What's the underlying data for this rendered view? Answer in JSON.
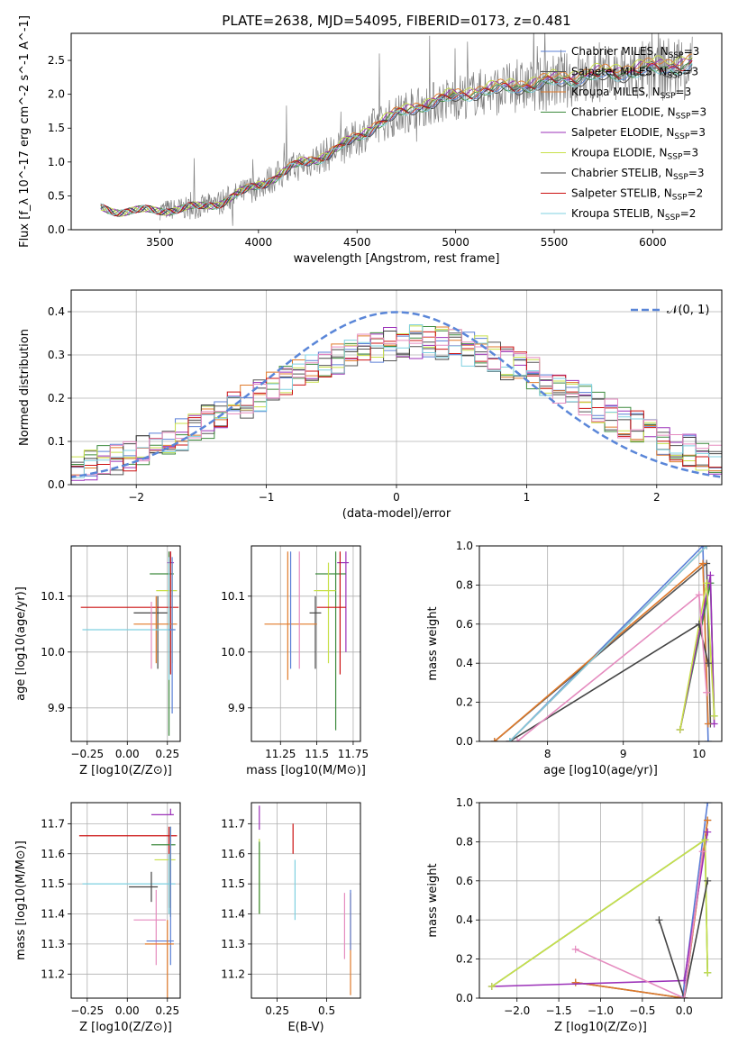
{
  "page_title": "PLATE=2638, MJD=54095, FIBERID=0173, z=0.481",
  "series_styles": [
    {
      "name": "Chabrier MILES, N$_{SSP}$=3",
      "label_main": "Chabrier MILES, N",
      "label_sub": "SSP",
      "label_tail": "=3",
      "color": "#5a7fd6"
    },
    {
      "name": "Salpeter MILES, N$_{SSP}$=3",
      "label_main": "Salpeter MILES, N",
      "label_sub": "SSP",
      "label_tail": "=3",
      "color": "#555555"
    },
    {
      "name": "Kroupa MILES, N$_{SSP}$=3",
      "label_main": "Kroupa MILES, N",
      "label_sub": "SSP",
      "label_tail": "=3",
      "color": "#e07a2a"
    },
    {
      "name": "Chabrier ELODIE, N$_{SSP}$=3",
      "label_main": "Chabrier ELODIE, N",
      "label_sub": "SSP",
      "label_tail": "=3",
      "color": "#3d8a3d"
    },
    {
      "name": "Salpeter ELODIE, N$_{SSP}$=3",
      "label_main": "Salpeter ELODIE, N",
      "label_sub": "SSP",
      "label_tail": "=3",
      "color": "#9b30b8"
    },
    {
      "name": "Kroupa ELODIE, N$_{SSP}$=3",
      "label_main": "Kroupa ELODIE, N",
      "label_sub": "SSP",
      "label_tail": "=3",
      "color": "#c8e04a"
    },
    {
      "name": "Chabrier STELIB, N$_{SSP}$=3",
      "label_main": "Chabrier STELIB, N",
      "label_sub": "SSP",
      "label_tail": "=3",
      "color": "#444444"
    },
    {
      "name": "Salpeter STELIB, N$_{SSP}$=2",
      "label_main": "Salpeter STELIB, N",
      "label_sub": "SSP",
      "label_tail": "=2",
      "color": "#cc1111"
    },
    {
      "name": "Kroupa STELIB, N$_{SSP}$=2",
      "label_main": "Kroupa STELIB, N",
      "label_sub": "SSP",
      "label_tail": "=2",
      "color": "#7fd0e0"
    }
  ],
  "extra_colors": {
    "data": "#7f7f7f",
    "pink": "#e58bbf",
    "normal": "#5a86d8",
    "grid": "#b0b0b0"
  },
  "chart_data": [
    {
      "id": "spectrum",
      "type": "line",
      "title": "PLATE=2638, MJD=54095, FIBERID=0173, z=0.481",
      "xlabel": "wavelength [Angstrom, rest frame]",
      "ylabel": "Flux [f_λ 10^-17 erg cm^-2 s^-1 A^-1]",
      "xlim": [
        3050,
        6350
      ],
      "ylim": [
        0,
        2.9
      ],
      "xticks": [
        3500,
        4000,
        4500,
        5000,
        5500,
        6000
      ],
      "yticks": [
        0.0,
        0.5,
        1.0,
        1.5,
        2.0,
        2.5
      ],
      "grid": false,
      "legend": "top-right",
      "model_x": [
        3200,
        3300,
        3400,
        3500,
        3600,
        3700,
        3800,
        3900,
        4000,
        4100,
        4200,
        4300,
        4400,
        4500,
        4600,
        4700,
        4800,
        4900,
        5000,
        5100,
        5200,
        5300,
        5400,
        5500,
        5600,
        5700,
        5800,
        5900,
        6000,
        6100,
        6200
      ],
      "model_y": [
        0.32,
        0.28,
        0.27,
        0.29,
        0.31,
        0.33,
        0.4,
        0.52,
        0.65,
        0.8,
        0.95,
        1.05,
        1.18,
        1.35,
        1.55,
        1.68,
        1.8,
        1.88,
        1.95,
        2.02,
        2.05,
        2.1,
        2.12,
        2.18,
        2.22,
        2.25,
        2.28,
        2.32,
        2.35,
        2.38,
        2.42
      ],
      "series_offsets": [
        0.0,
        0.05,
        0.12,
        0.0,
        0.1,
        0.15,
        -0.05,
        0.02,
        -0.03
      ],
      "data_x_range": [
        3500,
        6200
      ]
    },
    {
      "id": "residual-hist",
      "type": "line",
      "xlabel": "(data-model)/error",
      "ylabel": "Normed distribution",
      "xlim": [
        -2.5,
        2.5
      ],
      "ylim": [
        0,
        0.45
      ],
      "xticks": [
        -2,
        -1,
        0,
        1,
        2
      ],
      "yticks": [
        0.0,
        0.1,
        0.2,
        0.3,
        0.4
      ],
      "grid": true,
      "legend": "top-right",
      "legend_label": "𝒩(0, 1)",
      "bin_edges_start": -2.5,
      "bin_width": 0.1,
      "n_bins": 50
    },
    {
      "id": "age-vs-Z",
      "type": "scatter",
      "xlabel": "Z [log10(Z/Z⊙)]",
      "ylabel": "age [log10(age/yr)]",
      "xlim": [
        -0.35,
        0.33
      ],
      "ylim": [
        9.84,
        10.19
      ],
      "xticks": [
        -0.25,
        0.0,
        0.25
      ],
      "xtick_labels": [
        "−0.25",
        "0.00",
        "0.25"
      ],
      "yticks": [
        9.9,
        10.0,
        10.1
      ],
      "grid": true,
      "points": [
        {
          "x": 0.27,
          "y": 10.16,
          "xerr": [
            0.02,
            0.02
          ],
          "yerr": [
            0.0,
            0.02
          ],
          "s": 4
        },
        {
          "x": 0.26,
          "y": 10.14,
          "xerr": [
            0.12,
            0.03
          ],
          "yerr": [
            0.29,
            0.04
          ],
          "s": 3
        },
        {
          "x": 0.28,
          "y": 10.11,
          "xerr": [
            0.1,
            0.03
          ],
          "yerr": [
            0.13,
            0.05
          ],
          "s": 5
        },
        {
          "x": 0.19,
          "y": 10.07,
          "xerr": [
            0.15,
            0.06
          ],
          "yerr": [
            0.1,
            0.03
          ],
          "s": 6
        },
        {
          "x": 0.27,
          "y": 10.08,
          "xerr": [
            0.56,
            0.05
          ],
          "yerr": [
            0.12,
            0.1
          ],
          "s": 7
        },
        {
          "x": 0.18,
          "y": 10.05,
          "xerr": [
            0.14,
            0.13
          ],
          "yerr": [
            0.07,
            0.05
          ],
          "s": 2
        },
        {
          "x": 0.26,
          "y": 10.04,
          "xerr": [
            0.54,
            0.04
          ],
          "yerr": [
            0.09,
            0.13
          ],
          "s": 8
        },
        {
          "x": 0.28,
          "y": 10.04,
          "xerr": [
            0.02,
            0.02
          ],
          "yerr": [
            0.15,
            0.13
          ],
          "s": 0
        },
        {
          "x": 0.15,
          "y": 10.03,
          "xerr": [
            0.0,
            0.0
          ],
          "yerr": [
            0.06,
            0.06
          ],
          "s": 9
        }
      ]
    },
    {
      "id": "age-vs-mass",
      "type": "scatter",
      "xlabel": "mass [log10(M/M⊙)]",
      "ylabel": "",
      "xlim": [
        11.05,
        11.8
      ],
      "ylim": [
        9.84,
        10.19
      ],
      "xticks": [
        11.25,
        11.5,
        11.75
      ],
      "yticks": [
        9.9,
        10.0,
        10.1
      ],
      "grid": true,
      "points": [
        {
          "x": 11.7,
          "y": 10.16,
          "xerr": [
            0.06,
            0.02
          ],
          "yerr": [
            0.16,
            0.02
          ],
          "s": 4
        },
        {
          "x": 11.63,
          "y": 10.14,
          "xerr": [
            0.14,
            0.07
          ],
          "yerr": [
            0.28,
            0.04
          ],
          "s": 3
        },
        {
          "x": 11.58,
          "y": 10.11,
          "xerr": [
            0.1,
            0.05
          ],
          "yerr": [
            0.13,
            0.05
          ],
          "s": 5
        },
        {
          "x": 11.66,
          "y": 10.08,
          "xerr": [
            0.16,
            0.04
          ],
          "yerr": [
            0.12,
            0.1
          ],
          "s": 7
        },
        {
          "x": 11.49,
          "y": 10.07,
          "xerr": [
            0.04,
            0.04
          ],
          "yerr": [
            0.1,
            0.03
          ],
          "s": 6
        },
        {
          "x": 11.3,
          "y": 10.05,
          "xerr": [
            0.16,
            0.2
          ],
          "yerr": [
            0.1,
            0.13
          ],
          "s": 2
        },
        {
          "x": 11.32,
          "y": 10.05,
          "xerr": [
            0.0,
            0.0
          ],
          "yerr": [
            0.08,
            0.13
          ],
          "s": 0
        },
        {
          "x": 11.38,
          "y": 10.05,
          "xerr": [
            0.0,
            0.0
          ],
          "yerr": [
            0.08,
            0.13
          ],
          "s": 9
        },
        {
          "x": 11.5,
          "y": 10.04,
          "xerr": [
            0.0,
            0.0
          ],
          "yerr": [
            0.0,
            0.0
          ],
          "s": 8
        }
      ]
    },
    {
      "id": "weight-vs-age",
      "type": "line",
      "xlabel": "age [log10(age/yr)]",
      "ylabel": "mass weight",
      "xlim": [
        7.1,
        10.3
      ],
      "ylim": [
        0,
        1.0
      ],
      "xticks": [
        8,
        9,
        10
      ],
      "yticks": [
        0.0,
        0.2,
        0.4,
        0.6,
        0.8,
        1.0
      ],
      "grid": true,
      "series": [
        {
          "s": 0,
          "x": [
            7.5,
            10.05,
            10.12
          ],
          "y": [
            0.0,
            1.0,
            0.0
          ]
        },
        {
          "s": 1,
          "x": [
            7.3,
            10.1,
            10.15
          ],
          "y": [
            0.0,
            0.91,
            0.09
          ]
        },
        {
          "s": 2,
          "x": [
            7.3,
            10.05,
            10.12
          ],
          "y": [
            0.0,
            0.91,
            0.09
          ]
        },
        {
          "s": 3,
          "x": [
            9.75,
            10.15,
            10.2
          ],
          "y": [
            0.06,
            0.81,
            0.13
          ]
        },
        {
          "s": 4,
          "x": [
            9.75,
            10.15,
            10.2
          ],
          "y": [
            0.06,
            0.85,
            0.09
          ]
        },
        {
          "s": 5,
          "x": [
            9.75,
            10.1,
            10.2
          ],
          "y": [
            0.06,
            0.81,
            0.13
          ]
        },
        {
          "s": 6,
          "x": [
            7.5,
            10.0,
            10.12
          ],
          "y": [
            0.0,
            0.6,
            0.4
          ]
        },
        {
          "s": 7,
          "x": [
            7.5,
            10.1
          ],
          "y": [
            0.0,
            1.0
          ]
        },
        {
          "s": 8,
          "x": [
            7.5,
            10.1
          ],
          "y": [
            0.0,
            1.0
          ]
        },
        {
          "s": 9,
          "x": [
            7.6,
            10.0,
            10.1
          ],
          "y": [
            0.0,
            0.75,
            0.25
          ]
        }
      ]
    },
    {
      "id": "mass-vs-Z",
      "type": "scatter",
      "xlabel": "Z [log10(Z/Z⊙)]",
      "ylabel": "mass [log10(M/M⊙)]",
      "xlim": [
        -0.35,
        0.33
      ],
      "ylim": [
        11.12,
        11.77
      ],
      "xticks": [
        -0.25,
        0.0,
        0.25
      ],
      "xtick_labels": [
        "−0.25",
        "0.00",
        "0.25"
      ],
      "yticks": [
        11.2,
        11.3,
        11.4,
        11.5,
        11.6,
        11.7
      ],
      "grid": true,
      "points": [
        {
          "x": 0.27,
          "y": 11.73,
          "xerr": [
            0.12,
            0.02
          ],
          "yerr": [
            0.0,
            0.02
          ],
          "s": 4
        },
        {
          "x": 0.26,
          "y": 11.66,
          "xerr": [
            0.56,
            0.05
          ],
          "yerr": [
            0.24,
            0.03
          ],
          "s": 7
        },
        {
          "x": 0.27,
          "y": 11.63,
          "xerr": [
            0.12,
            0.03
          ],
          "yerr": [
            0.24,
            0.06
          ],
          "s": 3
        },
        {
          "x": 0.27,
          "y": 11.58,
          "xerr": [
            0.1,
            0.03
          ],
          "yerr": [
            0.18,
            0.06
          ],
          "s": 5
        },
        {
          "x": 0.26,
          "y": 11.5,
          "xerr": [
            0.54,
            0.04
          ],
          "yerr": [
            0.1,
            0.1
          ],
          "s": 8
        },
        {
          "x": 0.15,
          "y": 11.49,
          "xerr": [
            0.14,
            0.04
          ],
          "yerr": [
            0.05,
            0.05
          ],
          "s": 6
        },
        {
          "x": 0.18,
          "y": 11.38,
          "xerr": [
            0.14,
            0.06
          ],
          "yerr": [
            0.15,
            0.1
          ],
          "s": 9
        },
        {
          "x": 0.27,
          "y": 11.31,
          "xerr": [
            0.15,
            0.02
          ],
          "yerr": [
            0.08,
            0.38
          ],
          "s": 0
        },
        {
          "x": 0.25,
          "y": 11.3,
          "xerr": [
            0.14,
            0.04
          ],
          "yerr": [
            0.18,
            0.08
          ],
          "s": 2
        }
      ]
    },
    {
      "id": "mass-vs-ebv",
      "type": "scatter",
      "xlabel": "E(B-V)",
      "ylabel": "",
      "xlim": [
        0.12,
        0.67
      ],
      "ylim": [
        11.12,
        11.77
      ],
      "xticks": [
        0.25,
        0.5
      ],
      "yticks": [
        11.2,
        11.3,
        11.4,
        11.5,
        11.6,
        11.7
      ],
      "grid": true,
      "points": [
        {
          "x": 0.16,
          "y": 11.72,
          "xerr": [
            0.0,
            0.0
          ],
          "yerr": [
            0.04,
            0.04
          ],
          "s": 4
        },
        {
          "x": 0.16,
          "y": 11.55,
          "xerr": [
            0.0,
            0.0
          ],
          "yerr": [
            0.15,
            0.1
          ],
          "s": 5
        },
        {
          "x": 0.16,
          "y": 11.52,
          "xerr": [
            0.0,
            0.0
          ],
          "yerr": [
            0.12,
            0.12
          ],
          "s": 3
        },
        {
          "x": 0.33,
          "y": 11.65,
          "xerr": [
            0.0,
            0.0
          ],
          "yerr": [
            0.05,
            0.05
          ],
          "s": 7
        },
        {
          "x": 0.34,
          "y": 11.48,
          "xerr": [
            0.0,
            0.0
          ],
          "yerr": [
            0.1,
            0.1
          ],
          "s": 8
        },
        {
          "x": 0.59,
          "y": 11.36,
          "xerr": [
            0.0,
            0.0
          ],
          "yerr": [
            0.11,
            0.11
          ],
          "s": 9
        },
        {
          "x": 0.62,
          "y": 11.3,
          "xerr": [
            0.0,
            0.0
          ],
          "yerr": [
            0.17,
            0.17
          ],
          "s": 2
        },
        {
          "x": 0.62,
          "y": 11.38,
          "xerr": [
            0.0,
            0.0
          ],
          "yerr": [
            0.1,
            0.1
          ],
          "s": 0
        }
      ]
    },
    {
      "id": "weight-vs-Z",
      "type": "line",
      "xlabel": "Z [log10(Z/Z⊙)]",
      "ylabel": "mass weight",
      "xlim": [
        -2.45,
        0.45
      ],
      "ylim": [
        0,
        1.0
      ],
      "xticks": [
        -2.0,
        -1.5,
        -1.0,
        -0.5,
        0.0
      ],
      "xtick_labels": [
        "−2.0",
        "−1.5",
        "−1.0",
        "−0.5",
        "0.0"
      ],
      "yticks": [
        0.0,
        0.2,
        0.4,
        0.6,
        0.8,
        1.0
      ],
      "grid": true,
      "series": [
        {
          "s": 0,
          "x": [
            -0.02,
            0.28
          ],
          "y": [
            0.0,
            1.0
          ]
        },
        {
          "s": 1,
          "x": [
            -1.3,
            0.0,
            0.28
          ],
          "y": [
            0.08,
            0.0,
            0.91
          ]
        },
        {
          "s": 2,
          "x": [
            -1.3,
            0.0,
            0.28
          ],
          "y": [
            0.08,
            0.0,
            0.91
          ]
        },
        {
          "s": 3,
          "x": [
            -2.3,
            0.25,
            0.28
          ],
          "y": [
            0.06,
            0.81,
            0.13
          ]
        },
        {
          "s": 4,
          "x": [
            -2.3,
            0.0,
            0.28
          ],
          "y": [
            0.06,
            0.09,
            0.85
          ]
        },
        {
          "s": 5,
          "x": [
            -2.3,
            0.25,
            0.28
          ],
          "y": [
            0.06,
            0.81,
            0.13
          ]
        },
        {
          "s": 6,
          "x": [
            -0.3,
            0.0,
            0.28
          ],
          "y": [
            0.4,
            0.0,
            0.6
          ]
        },
        {
          "s": 9,
          "x": [
            -1.3,
            0.0,
            0.22
          ],
          "y": [
            0.25,
            0.0,
            0.75
          ]
        }
      ]
    }
  ]
}
